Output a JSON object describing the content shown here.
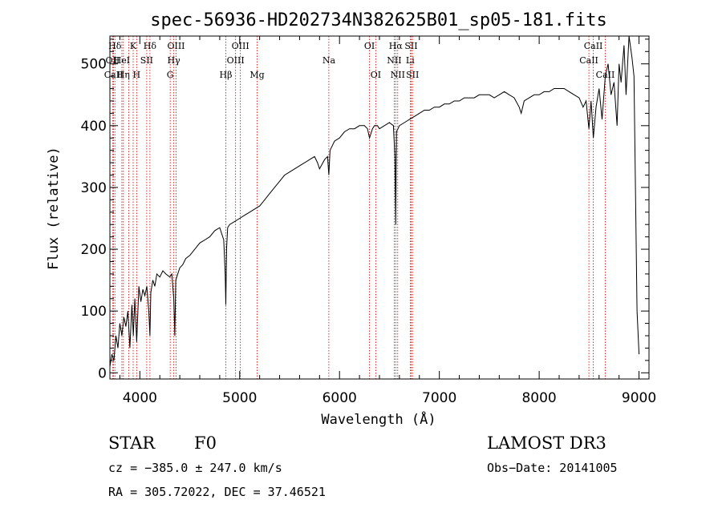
{
  "chart_data": {
    "type": "line",
    "title": "spec-56936-HD202734N382625B01_sp05-181.fits",
    "xlabel": "Wavelength (Å)",
    "ylabel": "Flux (relative)",
    "xlim": [
      3700,
      9100
    ],
    "ylim": [
      -10,
      545
    ],
    "x_ticks": [
      4000,
      5000,
      6000,
      7000,
      8000,
      9000
    ],
    "y_ticks": [
      0,
      100,
      200,
      300,
      400,
      500
    ],
    "grid": false,
    "series": [
      {
        "x": [
          3700,
          3720,
          3740,
          3760,
          3780,
          3800,
          3820,
          3840,
          3860,
          3880,
          3900,
          3920,
          3935,
          3950,
          3968,
          3990,
          4010,
          4030,
          4050,
          4070,
          4090,
          4101,
          4110,
          4130,
          4150,
          4170,
          4200,
          4230,
          4260,
          4300,
          4320,
          4340,
          4350,
          4360,
          4380,
          4400,
          4430,
          4460,
          4500,
          4550,
          4600,
          4650,
          4700,
          4750,
          4800,
          4840,
          4855,
          4861,
          4868,
          4880,
          4900,
          4950,
          5000,
          5050,
          5100,
          5150,
          5200,
          5250,
          5300,
          5350,
          5400,
          5450,
          5500,
          5550,
          5600,
          5650,
          5700,
          5750,
          5780,
          5800,
          5850,
          5880,
          5893,
          5905,
          5950,
          6000,
          6050,
          6100,
          6150,
          6200,
          6250,
          6280,
          6300,
          6330,
          6350,
          6380,
          6400,
          6450,
          6500,
          6540,
          6555,
          6563,
          6570,
          6600,
          6650,
          6700,
          6750,
          6800,
          6850,
          6900,
          6950,
          7000,
          7050,
          7100,
          7150,
          7200,
          7250,
          7300,
          7350,
          7400,
          7450,
          7500,
          7550,
          7600,
          7650,
          7700,
          7750,
          7800,
          7820,
          7850,
          7900,
          7950,
          8000,
          8050,
          8100,
          8150,
          8200,
          8250,
          8300,
          8350,
          8400,
          8440,
          8470,
          8498,
          8520,
          8542,
          8570,
          8600,
          8630,
          8662,
          8690,
          8720,
          8750,
          8780,
          8800,
          8820,
          8850,
          8870,
          8900,
          8930,
          8950,
          8980,
          9000
        ],
        "y": [
          10,
          30,
          20,
          60,
          40,
          80,
          60,
          90,
          75,
          100,
          40,
          110,
          60,
          120,
          50,
          140,
          115,
          135,
          125,
          140,
          100,
          60,
          130,
          150,
          140,
          160,
          155,
          165,
          160,
          155,
          160,
          120,
          60,
          150,
          160,
          170,
          175,
          185,
          190,
          200,
          210,
          215,
          220,
          230,
          235,
          215,
          160,
          110,
          200,
          235,
          240,
          245,
          250,
          255,
          260,
          265,
          270,
          280,
          290,
          300,
          310,
          320,
          325,
          330,
          335,
          340,
          345,
          350,
          340,
          330,
          345,
          350,
          320,
          360,
          375,
          380,
          390,
          395,
          395,
          400,
          400,
          395,
          380,
          395,
          400,
          400,
          395,
          400,
          405,
          400,
          350,
          240,
          390,
          400,
          405,
          410,
          415,
          420,
          425,
          425,
          430,
          430,
          435,
          435,
          440,
          440,
          445,
          445,
          445,
          450,
          450,
          450,
          445,
          450,
          455,
          450,
          445,
          430,
          420,
          440,
          445,
          450,
          450,
          455,
          455,
          460,
          460,
          460,
          455,
          450,
          445,
          430,
          440,
          395,
          440,
          380,
          430,
          460,
          410,
          480,
          500,
          450,
          470,
          400,
          500,
          470,
          530,
          450,
          545,
          510,
          480,
          100,
          30
        ]
      }
    ],
    "line_labels": [
      {
        "name": "Hδ",
        "x": 3750,
        "row": 0
      },
      {
        "name": "K",
        "x": 3933,
        "row": 0
      },
      {
        "name": "Hδ",
        "x": 4101,
        "row": 0
      },
      {
        "name": "OIII",
        "x": 4363,
        "row": 0
      },
      {
        "name": "OIII",
        "x": 5007,
        "row": 0
      },
      {
        "name": "OI",
        "x": 6300,
        "row": 0
      },
      {
        "name": "Hα",
        "x": 6563,
        "row": 0
      },
      {
        "name": "SII",
        "x": 6717,
        "row": 0
      },
      {
        "name": "CaII",
        "x": 8542,
        "row": 0
      },
      {
        "name": "OII",
        "x": 3727,
        "row": 1
      },
      {
        "name": "HeI",
        "x": 3820,
        "row": 1
      },
      {
        "name": "SII",
        "x": 4069,
        "row": 1
      },
      {
        "name": "Hγ",
        "x": 4340,
        "row": 1
      },
      {
        "name": "OIII",
        "x": 4959,
        "row": 1
      },
      {
        "name": "Na",
        "x": 5893,
        "row": 1
      },
      {
        "name": "NII",
        "x": 6548,
        "row": 1
      },
      {
        "name": "Li",
        "x": 6708,
        "row": 1
      },
      {
        "name": "CaII",
        "x": 8498,
        "row": 1
      },
      {
        "name": "CaII",
        "x": 3737,
        "row": 2
      },
      {
        "name": "Hη",
        "x": 3835,
        "row": 2
      },
      {
        "name": "H",
        "x": 3968,
        "row": 2
      },
      {
        "name": "G",
        "x": 4304,
        "row": 2
      },
      {
        "name": "Hβ",
        "x": 4861,
        "row": 2
      },
      {
        "name": "Mg",
        "x": 5175,
        "row": 2
      },
      {
        "name": "OI",
        "x": 6363,
        "row": 2
      },
      {
        "name": "NII",
        "x": 6583,
        "row": 2
      },
      {
        "name": "SII",
        "x": 6731,
        "row": 2
      },
      {
        "name": "CaII",
        "x": 8662,
        "row": 2
      }
    ],
    "dotted_lines_x": [
      3727,
      3737,
      3750,
      3820,
      3835,
      3889,
      3933,
      3968,
      4069,
      4101,
      4304,
      4340,
      4363,
      4861,
      4959,
      5007,
      5175,
      5893,
      6300,
      6363,
      6548,
      6563,
      6583,
      6708,
      6717,
      6731,
      8498,
      8542,
      8662
    ],
    "line_color": "#000000",
    "marker_line_color": "#cc0000"
  },
  "footer": {
    "class_label": "STAR",
    "subclass": "F0",
    "survey": "LAMOST DR3",
    "cz": "cz = −385.0 ± 247.0 km/s",
    "obs_date": "Obs−Date: 20141005",
    "coords": "RA = 305.72022, DEC =  37.46521"
  }
}
